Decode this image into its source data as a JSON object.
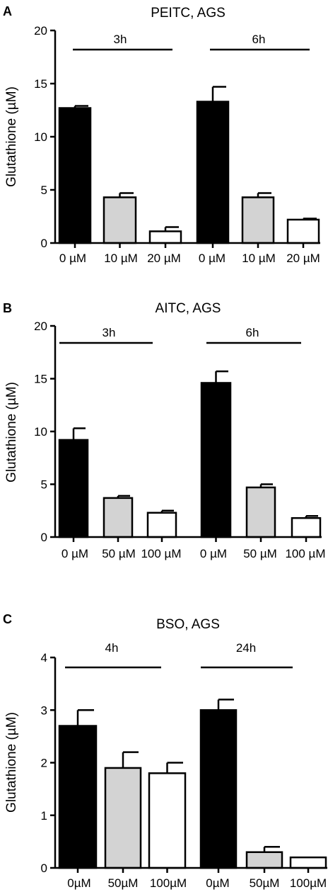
{
  "colors": {
    "black": "#000000",
    "gray": "#d3d3d3",
    "white": "#ffffff"
  },
  "chart_data": [
    {
      "type": "bar",
      "panel": "A",
      "title": "PEITC, AGS",
      "ylabel": "Glutathione (µM)",
      "ylim": [
        0,
        20
      ],
      "yticks": [
        "0",
        "5",
        "10",
        "15",
        "20"
      ],
      "categories": [
        "0 µM",
        "10 µM",
        "20 µM",
        "0 µM",
        "10 µM",
        "20 µM"
      ],
      "values": [
        12.7,
        4.3,
        1.1,
        13.3,
        4.3,
        2.2
      ],
      "errors": [
        0.2,
        0.4,
        0.4,
        1.4,
        0.4,
        0.1
      ],
      "fills": [
        "black",
        "gray",
        "white",
        "black",
        "gray",
        "white"
      ],
      "groups": [
        "3h",
        "6h"
      ]
    },
    {
      "type": "bar",
      "panel": "B",
      "title": "AITC, AGS",
      "ylabel": "Glutathione (µM)",
      "ylim": [
        0,
        20
      ],
      "yticks": [
        "0",
        "5",
        "10",
        "15",
        "20"
      ],
      "categories": [
        "0 µM",
        "50 µM",
        "100 µM",
        "0 µM",
        "50 µM",
        "100 µM"
      ],
      "values": [
        9.2,
        3.7,
        2.3,
        14.6,
        4.7,
        1.8
      ],
      "errors": [
        1.1,
        0.2,
        0.2,
        1.1,
        0.3,
        0.2
      ],
      "fills": [
        "black",
        "gray",
        "white",
        "black",
        "gray",
        "white"
      ],
      "groups": [
        "3h",
        "6h"
      ]
    },
    {
      "type": "bar",
      "panel": "C",
      "title": "BSO, AGS",
      "ylabel": "Glutathione (µM)",
      "ylim": [
        0,
        4
      ],
      "yticks": [
        "0",
        "1",
        "2",
        "3",
        "4"
      ],
      "categories": [
        "0µM",
        "50µM",
        "100µM",
        "0µM",
        "50µM",
        "100µM"
      ],
      "values": [
        2.7,
        1.9,
        1.8,
        3.0,
        0.3,
        0.2
      ],
      "errors": [
        0.3,
        0.3,
        0.2,
        0.2,
        0.1,
        0.0
      ],
      "fills": [
        "black",
        "gray",
        "white",
        "black",
        "gray",
        "white"
      ],
      "groups": [
        "4h",
        "24h"
      ]
    }
  ]
}
